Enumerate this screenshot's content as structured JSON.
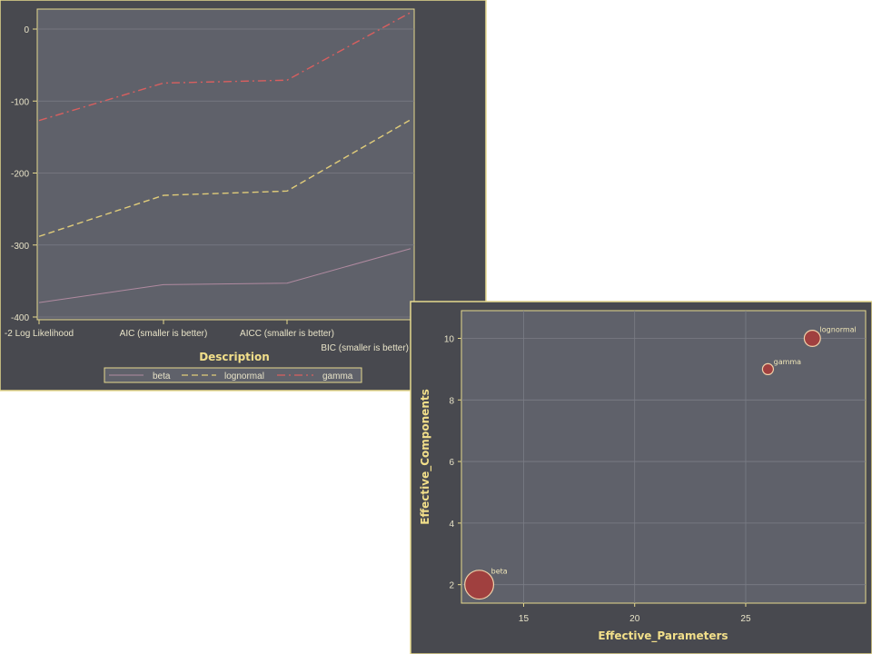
{
  "colors": {
    "panel_bg": "#48494f",
    "plot_bg": "#5f616a",
    "frame": "#e6d98e",
    "grid": "#7b7d86",
    "beta": "#b08aa0",
    "lognormal": "#e0cc7a",
    "gamma": "#d95f5f",
    "bubble_fill": "#a0403f",
    "bubble_stroke": "#f0d0a8"
  },
  "chart_data": [
    {
      "type": "line",
      "xlabel": "Description",
      "ylabel": "",
      "categories": [
        "-2 Log Likelihood",
        "AIC  (smaller is better)",
        "AICC (smaller is better)",
        "BIC  (smaller is better)"
      ],
      "ylim": [
        -400,
        20
      ],
      "yticks": [
        "0",
        "-100",
        "-200",
        "-300",
        "-400"
      ],
      "grid": true,
      "legend_position": "bottom",
      "series": [
        {
          "name": "beta",
          "style": "solid",
          "values": [
            -380,
            -355,
            -353,
            -305
          ]
        },
        {
          "name": "lognormal",
          "style": "dashed",
          "values": [
            -288,
            -231,
            -225,
            -126
          ]
        },
        {
          "name": "gamma",
          "style": "dash-dot",
          "values": [
            -127,
            -75,
            -71,
            23
          ]
        }
      ]
    },
    {
      "type": "scatter",
      "xlabel": "Effective_Parameters",
      "ylabel": "Effective_Components",
      "xlim": [
        12.2,
        30.4
      ],
      "ylim": [
        1.4,
        10.9
      ],
      "xticks": [
        "15",
        "20",
        "25"
      ],
      "yticks": [
        "2",
        "4",
        "6",
        "8",
        "10"
      ],
      "grid": true,
      "points": [
        {
          "label": "beta",
          "x": 13,
          "y": 2,
          "size": 7
        },
        {
          "label": "gamma",
          "x": 26,
          "y": 9,
          "size": 1
        },
        {
          "label": "lognormal",
          "x": 28,
          "y": 10,
          "size": 2.2
        }
      ]
    }
  ]
}
